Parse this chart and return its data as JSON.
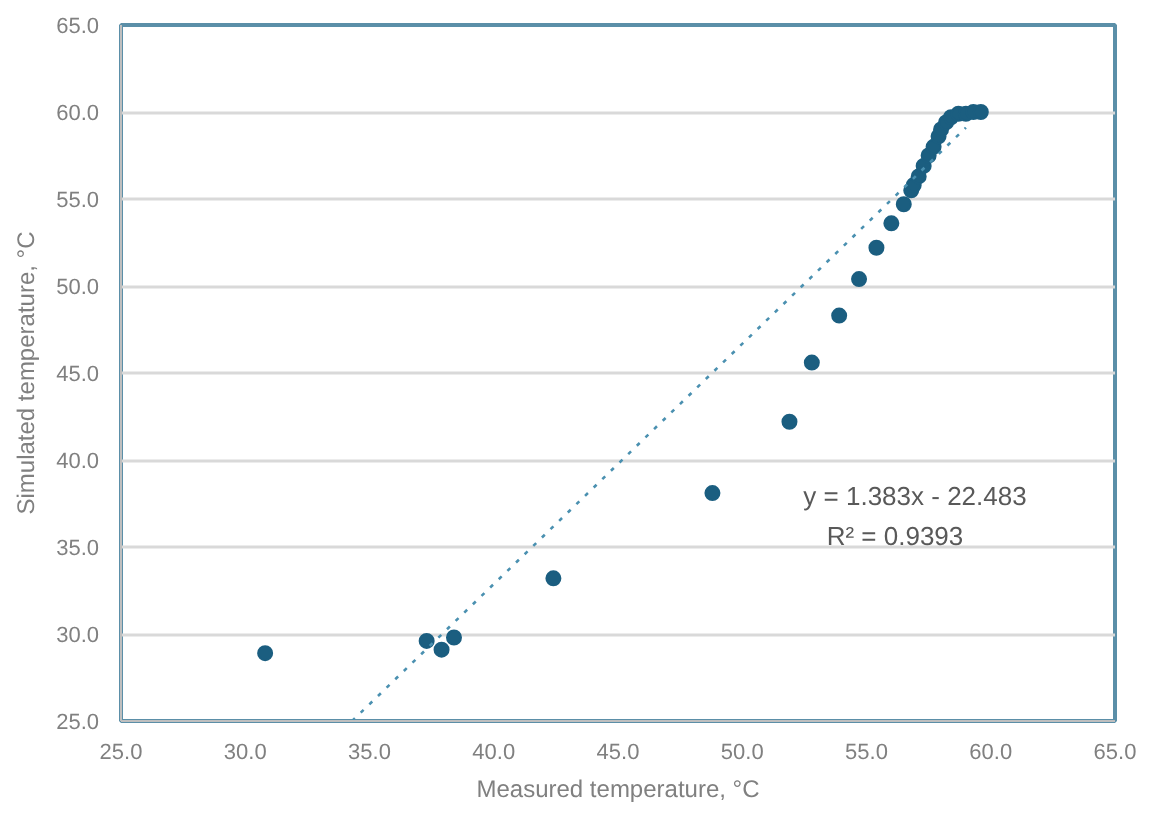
{
  "chart_data": {
    "type": "scatter",
    "xlabel": "Measured temperature, °C",
    "ylabel": "Simulated temperature, °C",
    "xlim": [
      25,
      65
    ],
    "ylim": [
      25,
      65
    ],
    "xticks": [
      {
        "value": 25,
        "label": "25.0"
      },
      {
        "value": 30,
        "label": "30.0"
      },
      {
        "value": 35,
        "label": "35.0"
      },
      {
        "value": 40,
        "label": "40.0"
      },
      {
        "value": 45,
        "label": "45.0"
      },
      {
        "value": 50,
        "label": "50.0"
      },
      {
        "value": 55,
        "label": "55.0"
      },
      {
        "value": 60,
        "label": "60.0"
      },
      {
        "value": 65,
        "label": "65.0"
      }
    ],
    "yticks": [
      {
        "value": 25,
        "label": "25.0"
      },
      {
        "value": 30,
        "label": "30.0"
      },
      {
        "value": 35,
        "label": "35.0"
      },
      {
        "value": 40,
        "label": "40.0"
      },
      {
        "value": 45,
        "label": "45.0"
      },
      {
        "value": 50,
        "label": "50.0"
      },
      {
        "value": 55,
        "label": "55.0"
      },
      {
        "value": 60,
        "label": "60.0"
      },
      {
        "value": 65,
        "label": "65.0"
      }
    ],
    "grid": "y",
    "series": [
      {
        "marker": "circle",
        "color": "#1b5e80",
        "x": [
          30.8,
          37.3,
          37.9,
          38.4,
          42.4,
          48.8,
          51.9,
          52.8,
          53.9,
          54.7,
          55.4,
          56.0,
          56.5,
          56.8,
          56.9,
          57.1,
          57.3,
          57.5,
          57.7,
          57.9,
          58.0,
          58.2,
          58.4,
          58.7,
          59.0,
          59.3,
          59.6
        ],
        "values": [
          28.9,
          29.6,
          29.1,
          29.8,
          33.2,
          38.1,
          42.2,
          45.6,
          48.3,
          50.4,
          52.2,
          53.6,
          54.7,
          55.5,
          55.8,
          56.3,
          56.9,
          57.5,
          58.0,
          58.6,
          59.0,
          59.4,
          59.7,
          59.9,
          59.9,
          60.0,
          60.0
        ]
      },
      {
        "type": "line",
        "color": "#4a90b0",
        "line_style": "dotted",
        "x": [
          34.3,
          59.0
        ],
        "values": [
          25.0,
          59.1
        ]
      }
    ],
    "annotations": [
      "y = 1.383x - 22.483",
      "R² = 0.9393"
    ]
  }
}
